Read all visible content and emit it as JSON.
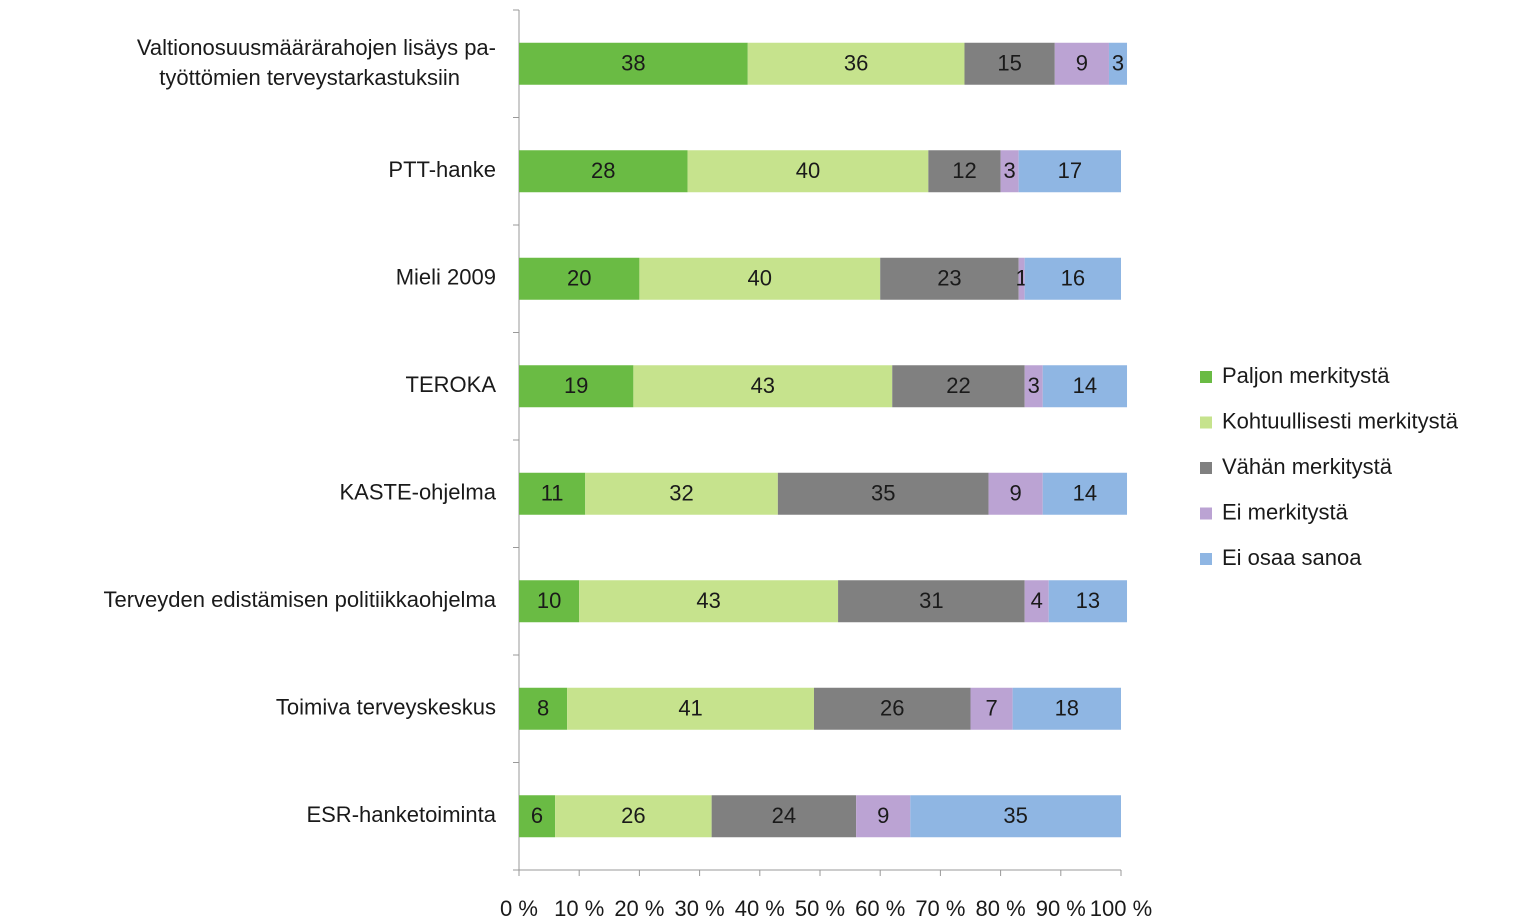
{
  "chart_data": {
    "type": "stacked_bar",
    "orientation": "horizontal",
    "categories": [
      [
        "Valtionosuusmäärärahojen lisäys pa-",
        "työttömien terveystarkastuksiin"
      ],
      "PTT-hanke",
      "Mieli 2009",
      "TEROKA",
      "KASTE-ohjelma",
      "Terveyden edistämisen politiikkaohjelma",
      "Toimiva terveyskeskus",
      "ESR-hanketoiminta"
    ],
    "series": [
      {
        "name": "Paljon merkitystä",
        "color": "#6abb44",
        "values": [
          38,
          28,
          20,
          19,
          11,
          10,
          8,
          6
        ]
      },
      {
        "name": "Kohtuullisesti merkitystä",
        "color": "#c6e38d",
        "values": [
          36,
          40,
          40,
          43,
          32,
          43,
          41,
          26
        ]
      },
      {
        "name": "Vähän merkitystä",
        "color": "#808080",
        "values": [
          15,
          12,
          23,
          22,
          35,
          31,
          26,
          24
        ]
      },
      {
        "name": "Ei merkitystä",
        "color": "#bba3d3",
        "values": [
          9,
          3,
          1,
          3,
          9,
          4,
          7,
          9
        ]
      },
      {
        "name": "Ei osaa sanoa",
        "color": "#8fb6e3",
        "values": [
          3,
          17,
          16,
          14,
          14,
          13,
          18,
          35
        ]
      }
    ],
    "xlim": [
      0,
      100
    ],
    "xticks": [
      {
        "value": 0,
        "label": "0 %"
      },
      {
        "value": 10,
        "label": "10 %"
      },
      {
        "value": 20,
        "label": "20 %"
      },
      {
        "value": 30,
        "label": "30 %"
      },
      {
        "value": 40,
        "label": "40 %"
      },
      {
        "value": 50,
        "label": "50 %"
      },
      {
        "value": 60,
        "label": "60 %"
      },
      {
        "value": 70,
        "label": "70 %"
      },
      {
        "value": 80,
        "label": "80 %"
      },
      {
        "value": 90,
        "label": "90 %"
      },
      {
        "value": 100,
        "label": "100 %"
      }
    ],
    "legend": "right"
  }
}
